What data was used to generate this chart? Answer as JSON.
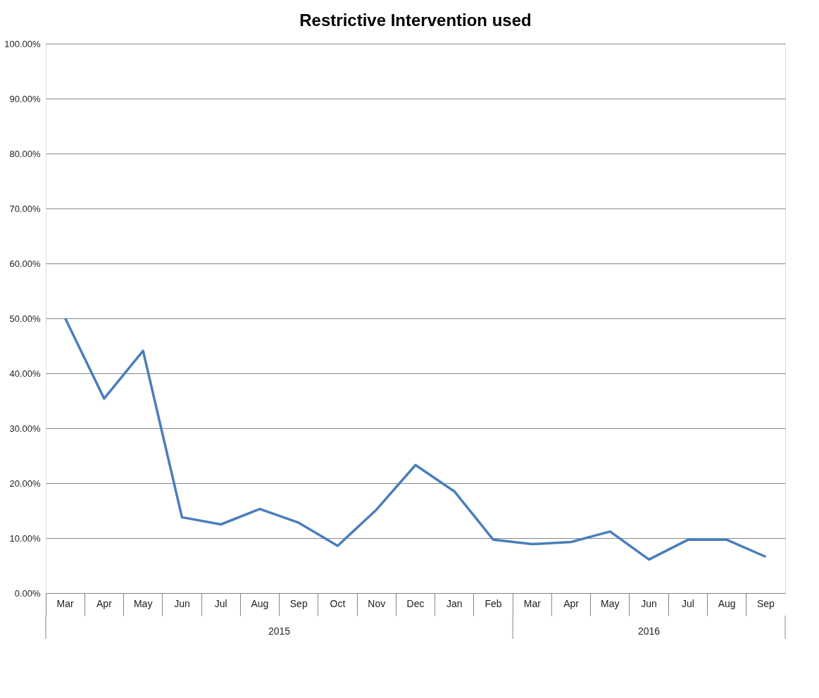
{
  "chart_data": {
    "type": "line",
    "title": "Restrictive Intervention used",
    "categories": [
      "Mar",
      "Apr",
      "May",
      "Jun",
      "Jul",
      "Aug",
      "Sep",
      "Oct",
      "Nov",
      "Dec",
      "Jan",
      "Feb",
      "Mar",
      "Apr",
      "May",
      "Jun",
      "Jul",
      "Aug",
      "Sep"
    ],
    "series": [
      {
        "color": "#4a7ebb",
        "values": [
          50.0,
          35.4,
          44.1,
          13.8,
          12.5,
          15.3,
          12.8,
          8.6,
          15.2,
          23.3,
          18.5,
          9.7,
          8.9,
          9.3,
          11.2,
          6.1,
          9.7,
          9.7,
          6.6
        ]
      }
    ],
    "ylim": [
      0,
      100
    ],
    "yticks": [
      {
        "value": 0,
        "label": "0.00%"
      },
      {
        "value": 10,
        "label": "10.00%"
      },
      {
        "value": 20,
        "label": "20.00%"
      },
      {
        "value": 30,
        "label": "30.00%"
      },
      {
        "value": 40,
        "label": "40.00%"
      },
      {
        "value": 50,
        "label": "50.00%"
      },
      {
        "value": 60,
        "label": "60.00%"
      },
      {
        "value": 70,
        "label": "70.00%"
      },
      {
        "value": 80,
        "label": "80.00%"
      },
      {
        "value": 90,
        "label": "90.00%"
      },
      {
        "value": 100,
        "label": "100.00%"
      }
    ],
    "annotations": [
      "2015",
      "2016"
    ],
    "grid": "y",
    "marker": "none",
    "line_style": "solid"
  }
}
